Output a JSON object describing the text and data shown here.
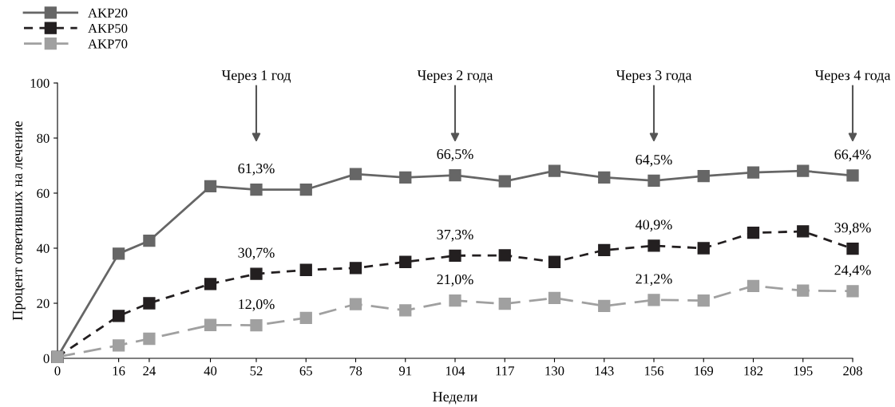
{
  "chart_data": {
    "type": "line",
    "xlabel": "Недели",
    "ylabel": "Процент ответивших на лечение",
    "x": [
      0,
      16,
      24,
      40,
      52,
      65,
      78,
      91,
      104,
      117,
      130,
      143,
      156,
      169,
      182,
      195,
      208
    ],
    "xlim": [
      0,
      208
    ],
    "xticks": [
      0,
      16,
      24,
      40,
      52,
      65,
      78,
      91,
      104,
      117,
      130,
      143,
      156,
      169,
      182,
      195,
      208
    ],
    "ylim": [
      0,
      100
    ],
    "yticks": [
      0,
      20,
      40,
      60,
      80,
      100
    ],
    "marker": "square",
    "grid": false,
    "legend": "top left",
    "series": [
      {
        "name": "AKP20",
        "color": "#666666",
        "line_style": "solid",
        "values": [
          0.5,
          38,
          42.7,
          62.5,
          61.3,
          61.3,
          66.9,
          65.7,
          66.5,
          64.3,
          68.1,
          65.7,
          64.5,
          66.2,
          67.5,
          68.1,
          66.4
        ],
        "value_labels": [
          null,
          null,
          null,
          null,
          "61,3%",
          null,
          null,
          null,
          "66,5%",
          null,
          null,
          null,
          "64,5%",
          null,
          null,
          null,
          "66,4%"
        ]
      },
      {
        "name": "AKP50",
        "color": "#231f20",
        "line_style": "dashed",
        "values": [
          0.5,
          15.4,
          20.0,
          27.0,
          30.7,
          32.1,
          32.8,
          35.0,
          37.3,
          37.4,
          35.0,
          39.3,
          40.9,
          40.0,
          45.6,
          46.1,
          39.8
        ],
        "value_labels": [
          null,
          null,
          null,
          null,
          "30,7%",
          null,
          null,
          null,
          "37,3%",
          null,
          null,
          null,
          "40,9%",
          null,
          null,
          null,
          "39,8%"
        ]
      },
      {
        "name": "AKP70",
        "color": "#a0a0a0",
        "line_style": "dashed",
        "values": [
          0.5,
          4.7,
          7.1,
          12.1,
          12.0,
          14.7,
          19.7,
          17.4,
          21.0,
          19.8,
          21.9,
          19.0,
          21.2,
          21.0,
          26.3,
          24.6,
          24.4
        ],
        "value_labels": [
          null,
          null,
          null,
          null,
          "12,0%",
          null,
          null,
          null,
          "21,0%",
          null,
          null,
          null,
          "21,2%",
          null,
          null,
          null,
          "24,4%"
        ]
      }
    ],
    "annotations": [
      "Через 1 год",
      "Через 2 года",
      "Через 3 года",
      "Через 4 года"
    ]
  }
}
